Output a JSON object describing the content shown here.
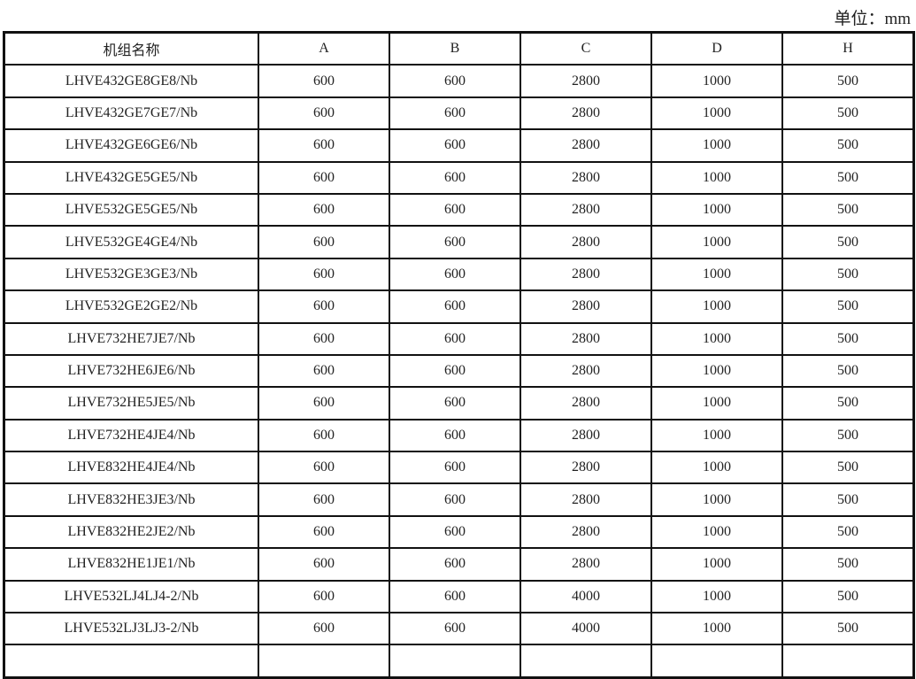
{
  "unit_label": "单位：mm",
  "table": {
    "headers": [
      "机组名称",
      "A",
      "B",
      "C",
      "D",
      "H"
    ],
    "rows": [
      [
        "LHVE432GE8GE8/Nb",
        "600",
        "600",
        "2800",
        "1000",
        "500"
      ],
      [
        "LHVE432GE7GE7/Nb",
        "600",
        "600",
        "2800",
        "1000",
        "500"
      ],
      [
        "LHVE432GE6GE6/Nb",
        "600",
        "600",
        "2800",
        "1000",
        "500"
      ],
      [
        "LHVE432GE5GE5/Nb",
        "600",
        "600",
        "2800",
        "1000",
        "500"
      ],
      [
        "LHVE532GE5GE5/Nb",
        "600",
        "600",
        "2800",
        "1000",
        "500"
      ],
      [
        "LHVE532GE4GE4/Nb",
        "600",
        "600",
        "2800",
        "1000",
        "500"
      ],
      [
        "LHVE532GE3GE3/Nb",
        "600",
        "600",
        "2800",
        "1000",
        "500"
      ],
      [
        "LHVE532GE2GE2/Nb",
        "600",
        "600",
        "2800",
        "1000",
        "500"
      ],
      [
        "LHVE732HE7JE7/Nb",
        "600",
        "600",
        "2800",
        "1000",
        "500"
      ],
      [
        "LHVE732HE6JE6/Nb",
        "600",
        "600",
        "2800",
        "1000",
        "500"
      ],
      [
        "LHVE732HE5JE5/Nb",
        "600",
        "600",
        "2800",
        "1000",
        "500"
      ],
      [
        "LHVE732HE4JE4/Nb",
        "600",
        "600",
        "2800",
        "1000",
        "500"
      ],
      [
        "LHVE832HE4JE4/Nb",
        "600",
        "600",
        "2800",
        "1000",
        "500"
      ],
      [
        "LHVE832HE3JE3/Nb",
        "600",
        "600",
        "2800",
        "1000",
        "500"
      ],
      [
        "LHVE832HE2JE2/Nb",
        "600",
        "600",
        "2800",
        "1000",
        "500"
      ],
      [
        "LHVE832HE1JE1/Nb",
        "600",
        "600",
        "2800",
        "1000",
        "500"
      ],
      [
        "LHVE532LJ4LJ4-2/Nb",
        "600",
        "600",
        "4000",
        "1000",
        "500"
      ],
      [
        "LHVE532LJ3LJ3-2/Nb",
        "600",
        "600",
        "4000",
        "1000",
        "500"
      ]
    ]
  }
}
